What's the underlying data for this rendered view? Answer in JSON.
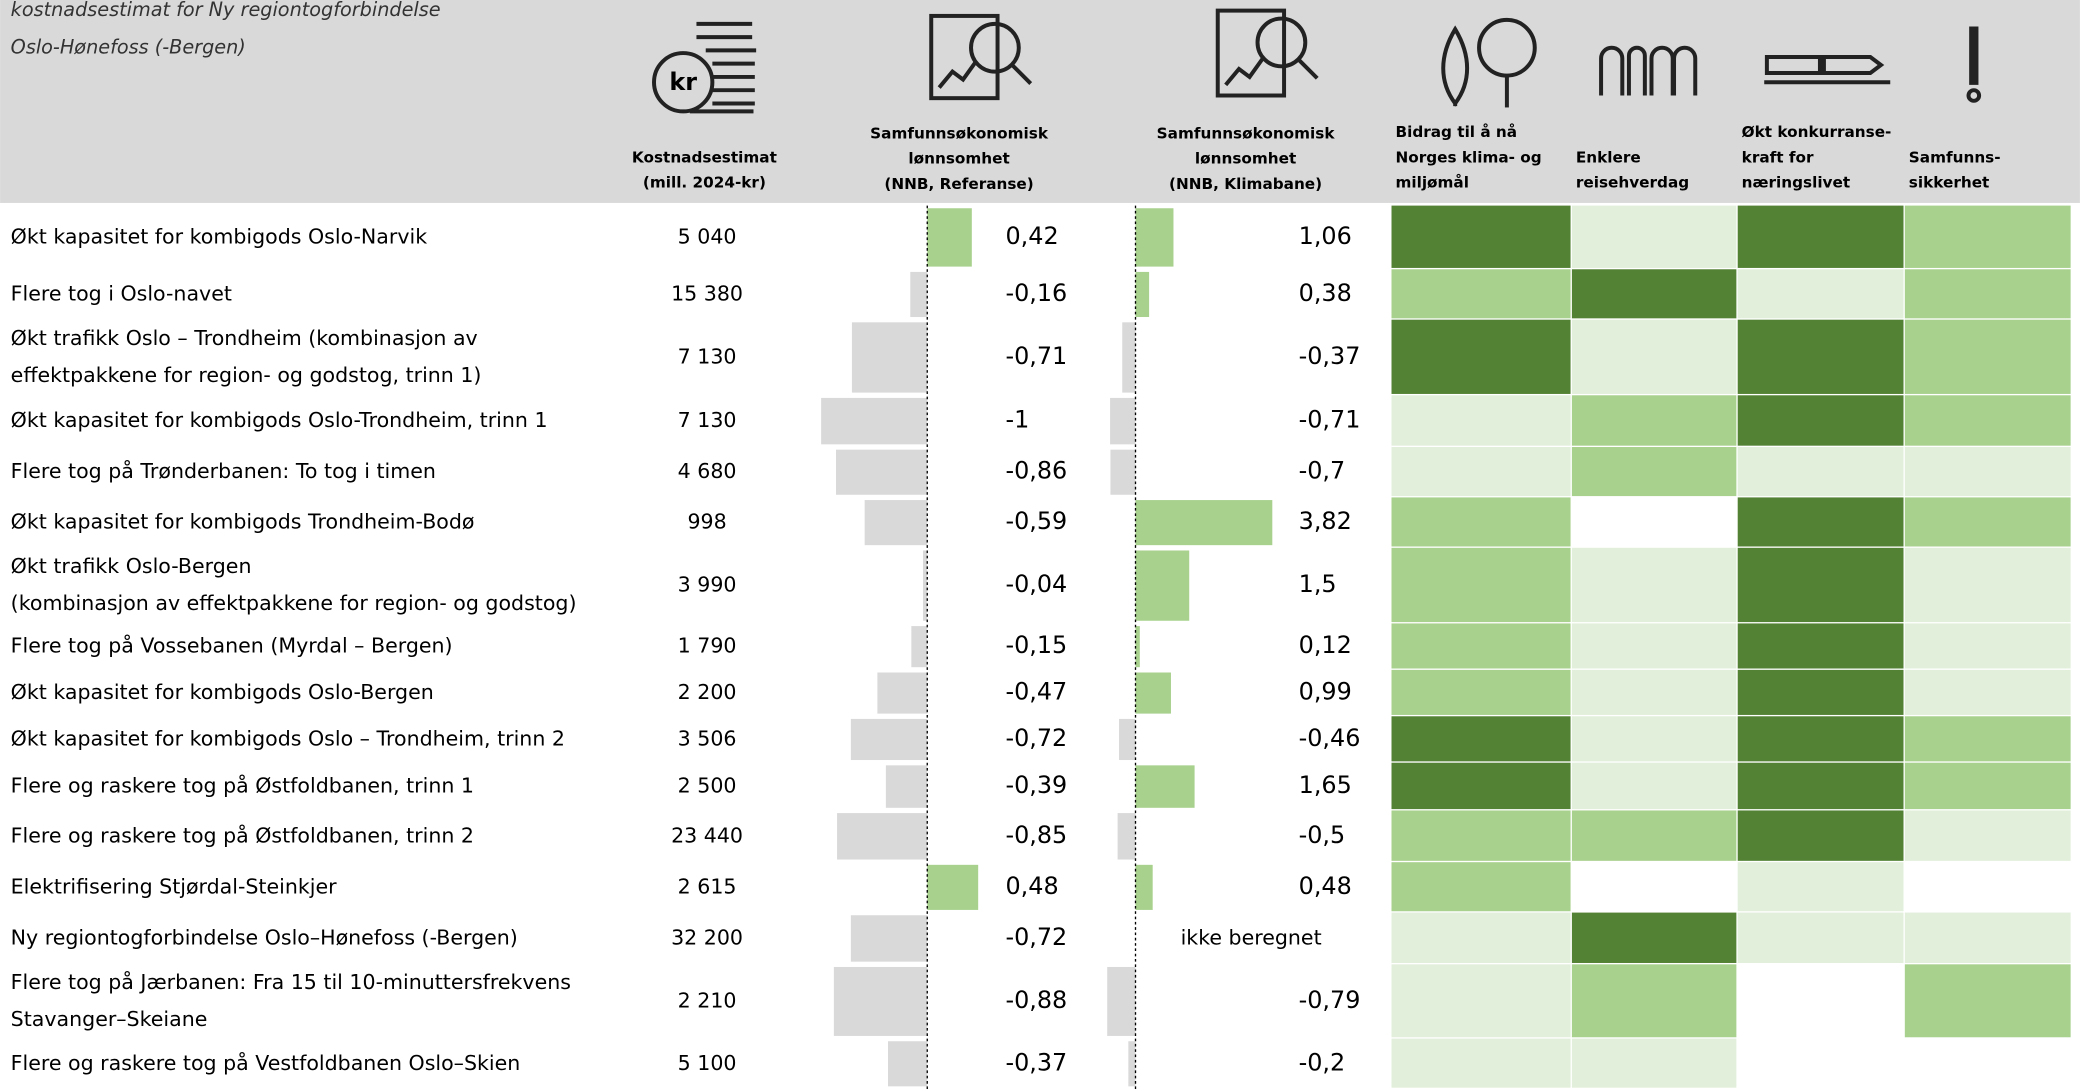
{
  "header": {
    "title": [
      "kostnadsestimat for Ny regiontogforbindelse",
      "Oslo-Hønefoss (-Bergen)"
    ],
    "columns": {
      "cost": [
        "Kostnadsestimat",
        "(mill. 2024-kr)"
      ],
      "ref": [
        "Samfunnsøkonomisk",
        "lønnsomhet",
        "(NNB, Referanse)"
      ],
      "klima": [
        "Samfunnsøkonomisk",
        "lønnsomhet",
        "(NNB, Klimabane)"
      ],
      "heat": [
        [
          "Bidrag til å nå",
          "Norges klima- og",
          "miljømål"
        ],
        [
          "Enklere",
          "reisehverdag"
        ],
        [
          "Økt konkurranse-",
          "kraft for",
          "næringslivet"
        ],
        [
          "Samfunns-",
          "sikkerhet"
        ]
      ]
    },
    "icon_text": "kr"
  },
  "heat_colors": [
    "#ffffff",
    "#e2efda",
    "#a9d18e",
    "#548235"
  ],
  "table": {
    "rows": [
      {
        "name": [
          "Økt kapasitet for kombigods Oslo-Narvik"
        ],
        "cost": "5 040",
        "ref": 0.42,
        "ref_label": "0,42",
        "klima": 1.06,
        "klima_label": "1,06",
        "heat": [
          3,
          1,
          3,
          2
        ]
      },
      {
        "name": [
          "Flere tog i Oslo-navet"
        ],
        "cost": "15 380",
        "ref": -0.16,
        "ref_label": "-0,16",
        "klima": 0.38,
        "klima_label": "0,38",
        "heat": [
          2,
          3,
          1,
          2
        ]
      },
      {
        "name": [
          " Økt trafikk Oslo – Trondheim (kombinasjon av",
          "effektpakkene for region- og godstog, trinn 1)"
        ],
        "cost": "7 130",
        "ref": -0.71,
        "ref_label": "-0,71",
        "klima": -0.37,
        "klima_label": "-0,37",
        "heat": [
          3,
          1,
          3,
          2
        ]
      },
      {
        "name": [
          "Økt kapasitet for kombigods Oslo-Trondheim, trinn 1"
        ],
        "cost": "7 130",
        "ref": -1,
        "ref_label": "-1",
        "klima": -0.71,
        "klima_label": "-0,71",
        "heat": [
          1,
          2,
          3,
          2
        ]
      },
      {
        "name": [
          "Flere tog på Trønderbanen: To tog i timen"
        ],
        "cost": "4 680",
        "ref": -0.86,
        "ref_label": "-0,86",
        "klima": -0.7,
        "klima_label": "-0,7",
        "heat": [
          1,
          2,
          1,
          1
        ]
      },
      {
        "name": [
          "Økt kapasitet for kombigods Trondheim-Bodø"
        ],
        "cost": "998",
        "ref": -0.59,
        "ref_label": "-0,59",
        "klima": 3.82,
        "klima_label": "3,82",
        "heat": [
          2,
          0,
          3,
          2
        ]
      },
      {
        "name": [
          "Økt trafikk Oslo-Bergen",
          "(kombinasjon av effektpakkene for region- og godstog)"
        ],
        "cost": "3 990",
        "ref": -0.04,
        "ref_label": "-0,04",
        "klima": 1.5,
        "klima_label": "1,5",
        "heat": [
          2,
          1,
          3,
          1
        ]
      },
      {
        "name": [
          "Flere tog på Vossebanen (Myrdal – Bergen)"
        ],
        "cost": "1 790",
        "ref": -0.15,
        "ref_label": "-0,15",
        "klima": 0.12,
        "klima_label": "0,12",
        "heat": [
          2,
          1,
          3,
          1
        ]
      },
      {
        "name": [
          "Økt kapasitet for kombigods Oslo-Bergen"
        ],
        "cost": "2 200",
        "ref": -0.47,
        "ref_label": "-0,47",
        "klima": 0.99,
        "klima_label": "0,99",
        "heat": [
          2,
          1,
          3,
          1
        ]
      },
      {
        "name": [
          "Økt kapasitet for kombigods Oslo – Trondheim, trinn 2"
        ],
        "cost": "3 506",
        "ref": -0.72,
        "ref_label": "-0,72",
        "klima": -0.46,
        "klima_label": "-0,46",
        "heat": [
          3,
          1,
          3,
          2
        ]
      },
      {
        "name": [
          "Flere og raskere tog på Østfoldbanen, trinn 1"
        ],
        "cost": "2 500",
        "ref": -0.39,
        "ref_label": "-0,39",
        "klima": 1.65,
        "klima_label": "1,65",
        "heat": [
          3,
          1,
          3,
          2
        ]
      },
      {
        "name": [
          "Flere og raskere tog på Østfoldbanen, trinn 2"
        ],
        "cost": "23 440",
        "ref": -0.85,
        "ref_label": "-0,85",
        "klima": -0.5,
        "klima_label": "-0,5",
        "heat": [
          2,
          2,
          3,
          1
        ]
      },
      {
        "name": [
          "Elektrifisering Stjørdal-Steinkjer"
        ],
        "cost": "2 615",
        "ref": 0.48,
        "ref_label": "0,48",
        "klima": 0.48,
        "klima_label": "0,48",
        "heat": [
          2,
          0,
          1,
          0
        ]
      },
      {
        "name": [
          "Ny regiontogforbindelse Oslo–Hønefoss (-Bergen)"
        ],
        "cost": "32 200",
        "ref": -0.72,
        "ref_label": "-0,72",
        "klima": null,
        "klima_label": "ikke beregnet",
        "heat": [
          1,
          3,
          1,
          1
        ]
      },
      {
        "name": [
          "Flere tog på Jærbanen: Fra 15 til 10-minuttersfrekvens",
          "Stavanger–Skeiane"
        ],
        "cost": "2 210",
        "ref": -0.88,
        "ref_label": "-0,88",
        "klima": -0.79,
        "klima_label": "-0,79",
        "heat": [
          1,
          2,
          0,
          2
        ]
      },
      {
        "name": [
          "Flere og raskere tog på Vestfoldbanen Oslo–Skien"
        ],
        "cost": "5 100",
        "ref": -0.37,
        "ref_label": "-0,37",
        "klima": -0.2,
        "klima_label": "-0,2",
        "heat": [
          1,
          1,
          0,
          0
        ]
      }
    ]
  }
}
